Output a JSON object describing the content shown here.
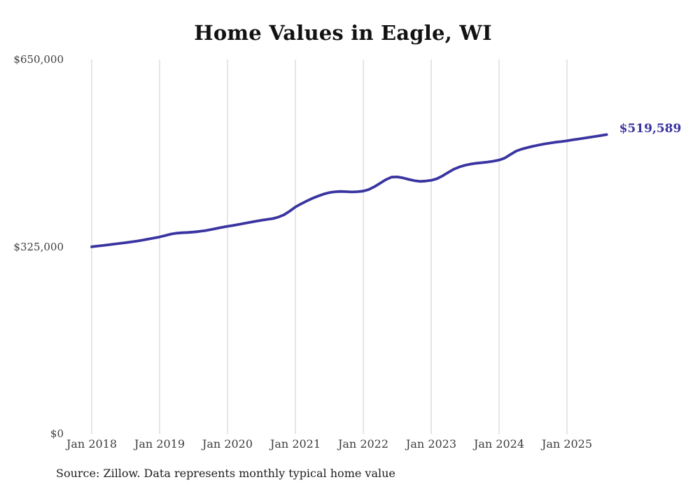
{
  "title": "Home Values in Eagle, WI",
  "source_note": "Source: Zillow. Data represents monthly typical home value",
  "colors": {
    "line": "#3a34a0",
    "end_label": "#3a34a0",
    "grid": "#cccccc",
    "title_text": "#121212",
    "axis_text": "#3d3d3d",
    "background": "#ffffff"
  },
  "chart_data": {
    "type": "line",
    "title": "Home Values in Eagle, WI",
    "xlabel": "",
    "ylabel": "",
    "x_start_month": "Jan 2018",
    "x_end_month": "Aug 2025",
    "x_tick_labels": [
      "Jan 2018",
      "Jan 2019",
      "Jan 2020",
      "Jan 2021",
      "Jan 2022",
      "Jan 2023",
      "Jan 2024",
      "Jan 2025"
    ],
    "y_tick_labels": [
      "$650,000",
      "$325,000",
      "$0"
    ],
    "y_ticks": [
      650000,
      325000,
      0
    ],
    "ylim": [
      0,
      650000
    ],
    "grid": "vertical-only",
    "legend": "none",
    "final_value": 519589,
    "final_value_label": "$519,589",
    "series": [
      {
        "name": "Monthly typical home value",
        "monthly_values": [
          325000,
          326100,
          327300,
          328500,
          329700,
          330900,
          332100,
          333400,
          334900,
          336600,
          338400,
          340200,
          342000,
          344500,
          347000,
          348600,
          349300,
          349800,
          350500,
          351600,
          353000,
          354800,
          356800,
          358700,
          360500,
          362000,
          363800,
          365600,
          367400,
          369200,
          371000,
          372500,
          373800,
          376500,
          380500,
          386800,
          394000,
          399500,
          404500,
          409000,
          413000,
          416500,
          419000,
          420500,
          421000,
          420600,
          420100,
          420600,
          421500,
          424500,
          429500,
          435500,
          441500,
          445800,
          446200,
          444500,
          442000,
          439800,
          438400,
          439000,
          440300,
          443000,
          448000,
          454000,
          459500,
          463500,
          466500,
          468500,
          470000,
          471000,
          472000,
          473500,
          475500,
          479000,
          485000,
          491000,
          494500,
          497000,
          499500,
          501500,
          503500,
          505000,
          506500,
          507500,
          509000,
          510500,
          512000,
          513500,
          515000,
          516500,
          518000,
          519589
        ]
      }
    ]
  }
}
